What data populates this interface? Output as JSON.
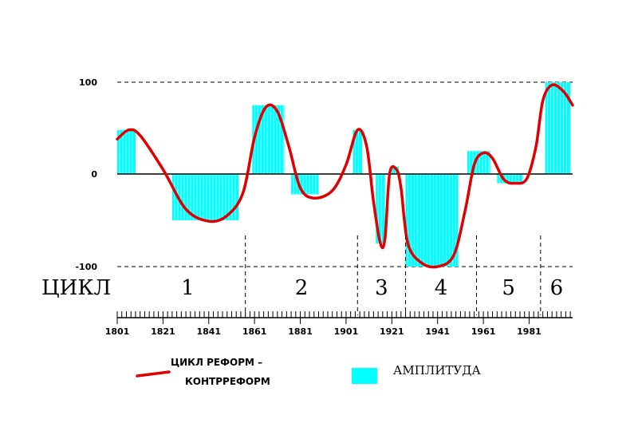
{
  "chart_data": {
    "type": "bar",
    "x_range": [
      1801,
      2000
    ],
    "y_range": [
      -100,
      100
    ],
    "y_ticks": [
      "100",
      "0",
      "-100"
    ],
    "x_tick_labels": [
      "1801",
      "1821",
      "1841",
      "1861",
      "1881",
      "1901",
      "1921",
      "1941",
      "1961",
      "1981"
    ],
    "cycles_label": "ЦИКЛ",
    "cycles": [
      {
        "label": "1",
        "end": 1857
      },
      {
        "label": "2",
        "end": 1906
      },
      {
        "label": "3",
        "end": 1927
      },
      {
        "label": "4",
        "end": 1958
      },
      {
        "label": "5",
        "end": 1986
      },
      {
        "label": "6",
        "end": 2000
      }
    ],
    "amplitude_bars": [
      {
        "start": 1801,
        "end": 1809,
        "value": 48
      },
      {
        "start": 1825,
        "end": 1854,
        "value": -50
      },
      {
        "start": 1860,
        "end": 1874,
        "value": 75
      },
      {
        "start": 1877,
        "end": 1889,
        "value": -22
      },
      {
        "start": 1904,
        "end": 1908,
        "value": 48
      },
      {
        "start": 1914,
        "end": 1918,
        "value": -75
      },
      {
        "start": 1920,
        "end": 1924,
        "value": 8
      },
      {
        "start": 1927,
        "end": 1950,
        "value": -100
      },
      {
        "start": 1954,
        "end": 1964,
        "value": 25
      },
      {
        "start": 1967,
        "end": 1978,
        "value": -10
      },
      {
        "start": 1988,
        "end": 1999,
        "value": 100
      }
    ],
    "reform_curve": [
      [
        1801,
        38
      ],
      [
        1806,
        48
      ],
      [
        1811,
        42
      ],
      [
        1821,
        5
      ],
      [
        1831,
        -38
      ],
      [
        1841,
        -51
      ],
      [
        1849,
        -45
      ],
      [
        1856,
        -20
      ],
      [
        1861,
        40
      ],
      [
        1866,
        73
      ],
      [
        1871,
        68
      ],
      [
        1876,
        30
      ],
      [
        1881,
        -15
      ],
      [
        1887,
        -26
      ],
      [
        1895,
        -18
      ],
      [
        1901,
        10
      ],
      [
        1906,
        48
      ],
      [
        1910,
        30
      ],
      [
        1913,
        -30
      ],
      [
        1916,
        -75
      ],
      [
        1918,
        -70
      ],
      [
        1920,
        0
      ],
      [
        1923,
        5
      ],
      [
        1925,
        -15
      ],
      [
        1928,
        -75
      ],
      [
        1934,
        -96
      ],
      [
        1941,
        -100
      ],
      [
        1948,
        -88
      ],
      [
        1953,
        -40
      ],
      [
        1957,
        10
      ],
      [
        1961,
        23
      ],
      [
        1965,
        17
      ],
      [
        1970,
        -6
      ],
      [
        1975,
        -10
      ],
      [
        1980,
        -5
      ],
      [
        1984,
        30
      ],
      [
        1987,
        80
      ],
      [
        1991,
        97
      ],
      [
        1996,
        90
      ],
      [
        2000,
        75
      ]
    ]
  },
  "legend": {
    "curve_line1": "ЦИКЛ РЕФОРМ –",
    "curve_line2": "КОНТРРЕФОРМ",
    "amplitude": "АМПЛИТУДА"
  },
  "colors": {
    "bars": "#00ffff",
    "curve": "#e00000",
    "axis": "#000000"
  }
}
